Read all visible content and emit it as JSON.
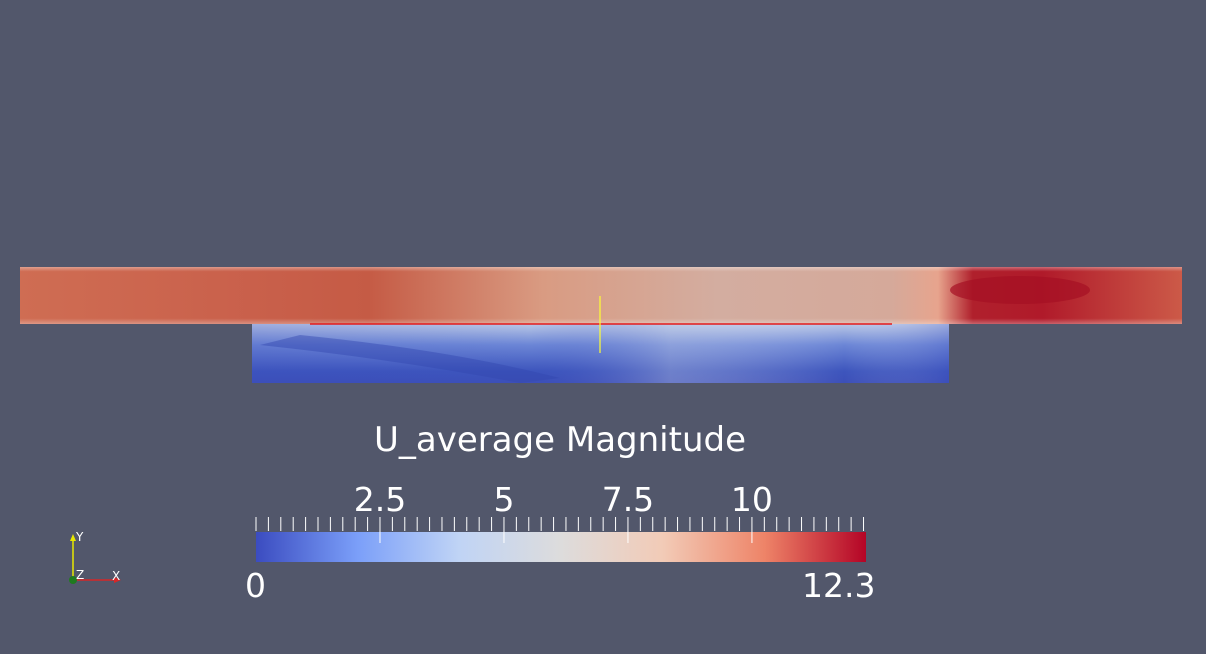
{
  "colorbar": {
    "title": "U_average Magnitude",
    "range": [
      0,
      12.3
    ],
    "range_labels": {
      "min": "0",
      "max": "12.3"
    },
    "major_ticks": [
      {
        "value": 2.5,
        "label": "2.5"
      },
      {
        "value": 5,
        "label": "5"
      },
      {
        "value": 7.5,
        "label": "7.5"
      },
      {
        "value": 10,
        "label": "10"
      }
    ],
    "colormap": "cool-to-warm",
    "colors": [
      "#3b4cc0",
      "#7b9ff9",
      "#c0d4f5",
      "#dddcdc",
      "#f2cbb7",
      "#ee8468",
      "#b40426"
    ]
  },
  "axes_widget": {
    "x": "X",
    "y": "Y",
    "z": "Z"
  },
  "colors": {
    "background": "#52576b",
    "probe_line": "#e41a1c",
    "probe_cursor": "#ffff33",
    "axis_x": "#d62728",
    "axis_y": "#e8e800",
    "axis_z": "#1f7a1f"
  }
}
